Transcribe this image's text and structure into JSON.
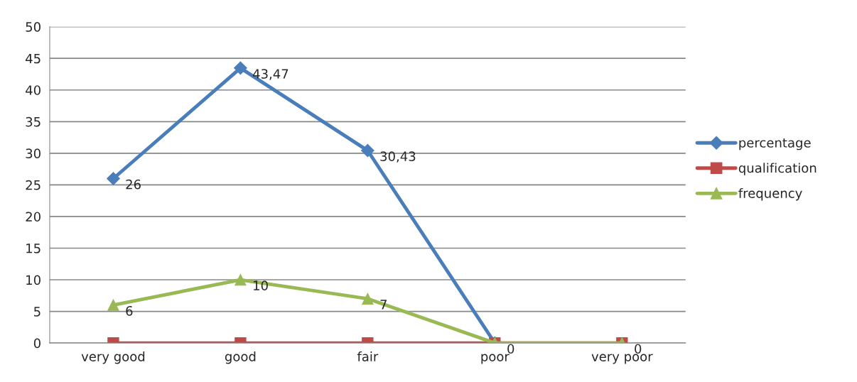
{
  "chart_data": {
    "type": "line",
    "categories": [
      "very good",
      "good",
      "fair",
      "poor",
      "very poor"
    ],
    "series": [
      {
        "name": "percentage",
        "color": "#4a7ebb",
        "marker": "diamond",
        "values": [
          26,
          43.47,
          30.43,
          0,
          null
        ],
        "value_labels": [
          "26",
          "43,47",
          "30,43",
          null,
          null
        ]
      },
      {
        "name": "qualification",
        "color": "#be4b48",
        "marker": "square",
        "values": [
          0,
          0,
          0,
          0,
          0
        ]
      },
      {
        "name": "frequency",
        "color": "#98b954",
        "marker": "triangle",
        "values": [
          6,
          10,
          7,
          0,
          0
        ],
        "value_labels": [
          "6",
          "10",
          "7",
          "0",
          "0"
        ]
      }
    ],
    "ylim": [
      0,
      50
    ],
    "yticks": [
      0,
      5,
      10,
      15,
      20,
      25,
      30,
      35,
      40,
      45,
      50
    ],
    "grid": "y",
    "legend": "right",
    "line_style": "solid"
  }
}
